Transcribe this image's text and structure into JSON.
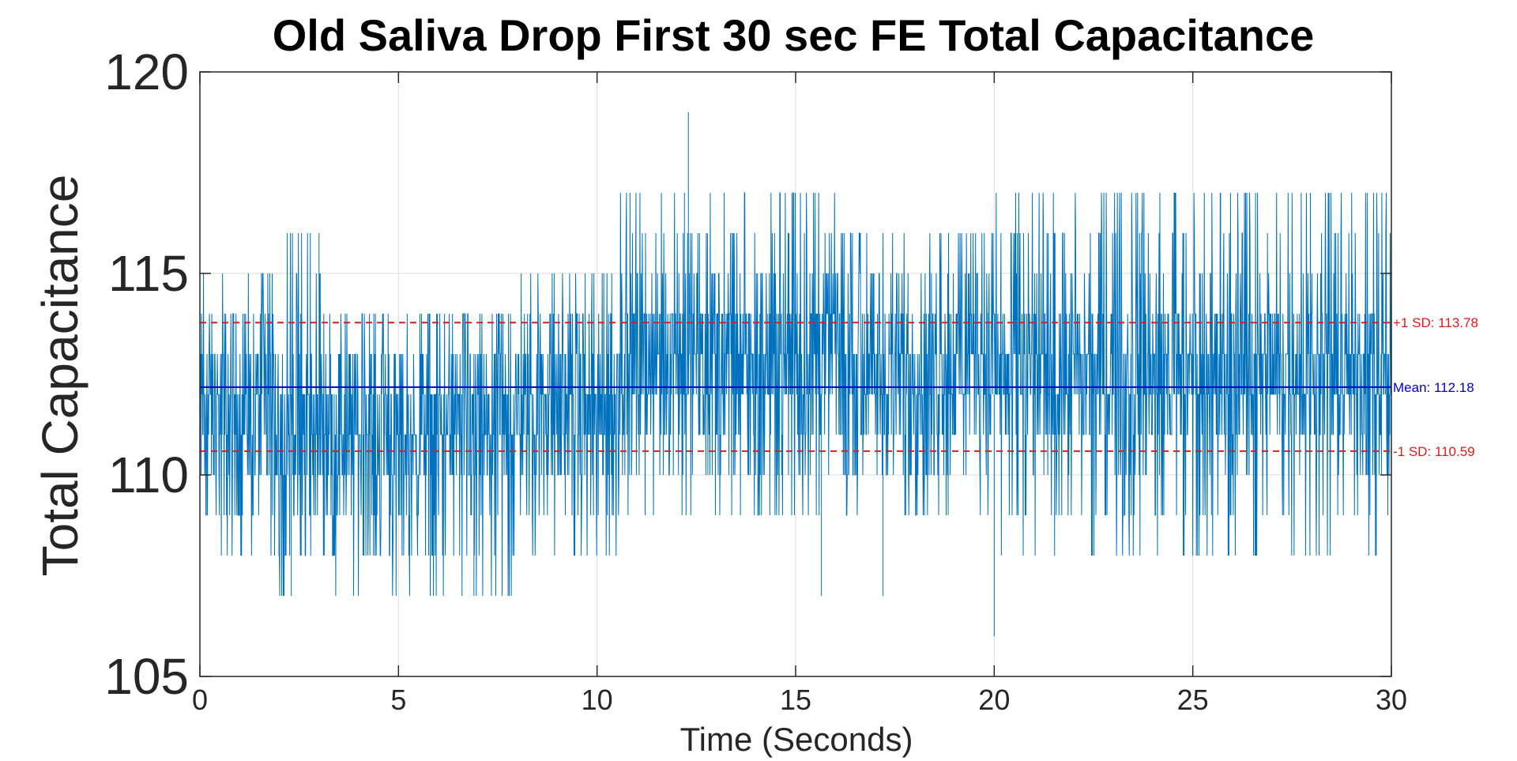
{
  "chart_data": {
    "type": "line",
    "title": "Old Saliva Drop First 30 sec FE Total Capacitance",
    "xlabel": "Time (Seconds)",
    "ylabel": "Total Capacitance",
    "xlim": [
      0,
      30
    ],
    "ylim": [
      105,
      120
    ],
    "xticks": [
      0,
      5,
      10,
      15,
      20,
      25,
      30
    ],
    "yticks": [
      105,
      110,
      115,
      120
    ],
    "xtick_labels": [
      "0",
      "5",
      "10",
      "15",
      "20",
      "25",
      "30"
    ],
    "ytick_labels": [
      "105",
      "110",
      "115",
      "120"
    ],
    "grid": true,
    "sample_count": 3000,
    "series_color": "#0072bd",
    "segments": [
      {
        "x0": 0,
        "x1": 2,
        "min": 108,
        "max": 115,
        "center": 111.5
      },
      {
        "x0": 2,
        "x1": 3.5,
        "min": 107,
        "max": 116,
        "center": 111.2
      },
      {
        "x0": 3.5,
        "x1": 8,
        "min": 107,
        "max": 114,
        "center": 111
      },
      {
        "x0": 8,
        "x1": 10.5,
        "min": 108,
        "max": 115,
        "center": 111.5
      },
      {
        "x0": 10.5,
        "x1": 16,
        "min": 109,
        "max": 117,
        "center": 113
      },
      {
        "x0": 16,
        "x1": 18.5,
        "min": 109,
        "max": 116,
        "center": 112.5
      },
      {
        "x0": 18.5,
        "x1": 20,
        "min": 109,
        "max": 116,
        "center": 113
      },
      {
        "x0": 20,
        "x1": 30,
        "min": 108,
        "max": 117,
        "center": 112.5
      }
    ],
    "spikes": [
      {
        "x": 12.3,
        "y": 119
      },
      {
        "x": 12.2,
        "y": 117
      },
      {
        "x": 20.0,
        "y": 106
      },
      {
        "x": 15.65,
        "y": 107
      },
      {
        "x": 17.2,
        "y": 107
      },
      {
        "x": 2.3,
        "y": 107
      },
      {
        "x": 5.8,
        "y": 107
      },
      {
        "x": 6.9,
        "y": 107
      },
      {
        "x": 3.0,
        "y": 116
      },
      {
        "x": 25.7,
        "y": 117
      }
    ],
    "reference_lines": [
      {
        "kind": "plus_sd",
        "value": 113.78,
        "label": "+1 SD: 113.78",
        "color": "#e31a1c",
        "style": "dashed"
      },
      {
        "kind": "mean",
        "value": 112.18,
        "label": "Mean: 112.18",
        "color": "#0000cc",
        "style": "solid"
      },
      {
        "kind": "minus_sd",
        "value": 110.59,
        "label": "-1 SD: 110.59",
        "color": "#e31a1c",
        "style": "dashed"
      }
    ]
  }
}
